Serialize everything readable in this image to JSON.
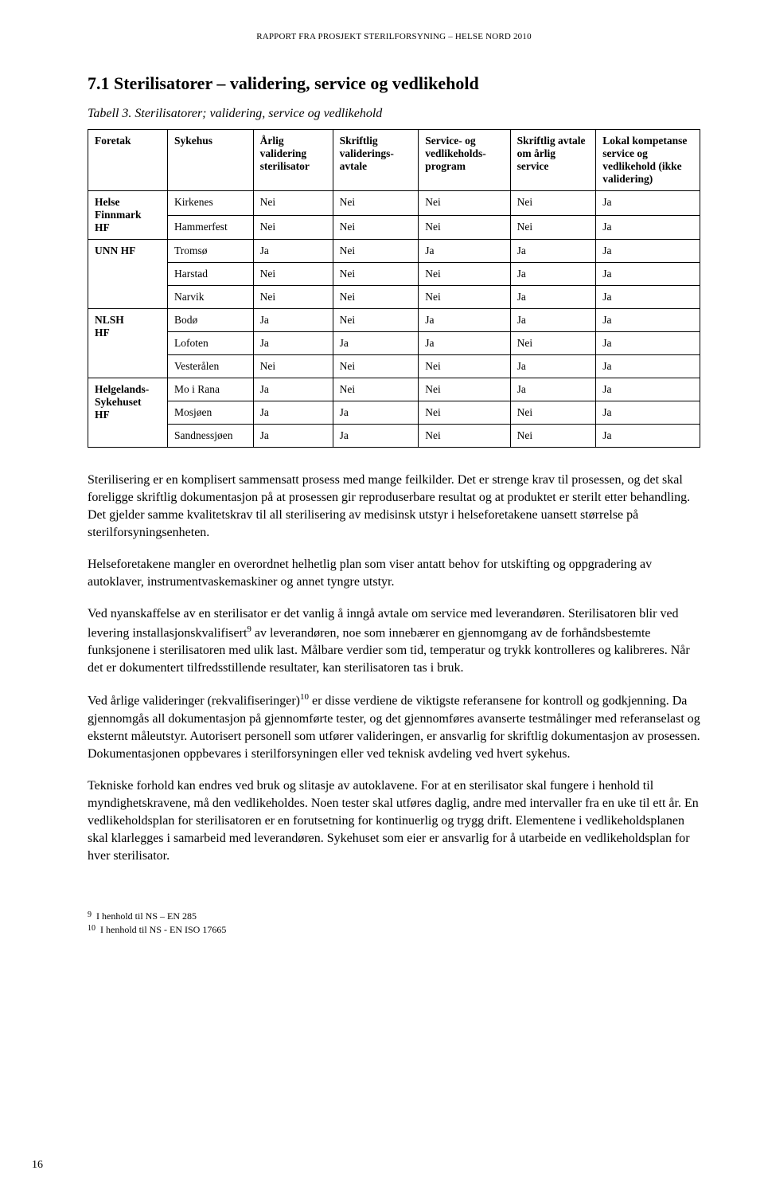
{
  "running_header": "RAPPORT FRA PROSJEKT STERILFORSYNING – HELSE NORD 2010",
  "section_title": "7.1  Sterilisatorer – validering, service og vedlikehold",
  "table_caption": "Tabell 3. Sterilisatorer; validering, service og vedlikehold",
  "table": {
    "columns": [
      "Foretak",
      "Sykehus",
      "Årlig validering sterilisator",
      "Skriftlig validerings-avtale",
      "Service- og vedlikeholds-program",
      "Skriftlig avtale om årlig service",
      "Lokal kompetanse service og vedlikehold (ikke validering)"
    ],
    "groups": [
      {
        "foretak": "Helse\nFinnmark\nHF",
        "rows": [
          {
            "sykehus": "Kirkenes",
            "c3": "Nei",
            "c4": "Nei",
            "c5": "Nei",
            "c6": "Nei",
            "c7": "Ja"
          },
          {
            "sykehus": "Hammerfest",
            "c3": "Nei",
            "c4": "Nei",
            "c5": "Nei",
            "c6": "Nei",
            "c7": "Ja"
          }
        ]
      },
      {
        "foretak": "UNN HF",
        "rows": [
          {
            "sykehus": "Tromsø",
            "c3": "Ja",
            "c4": "Nei",
            "c5": "Ja",
            "c6": "Ja",
            "c7": "Ja"
          },
          {
            "sykehus": "Harstad",
            "c3": "Nei",
            "c4": "Nei",
            "c5": "Nei",
            "c6": "Ja",
            "c7": "Ja"
          },
          {
            "sykehus": "Narvik",
            "c3": "Nei",
            "c4": "Nei",
            "c5": "Nei",
            "c6": "Ja",
            "c7": "Ja"
          }
        ]
      },
      {
        "foretak": "NLSH\nHF",
        "rows": [
          {
            "sykehus": "Bodø",
            "c3": "Ja",
            "c4": "Nei",
            "c5": "Ja",
            "c6": "Ja",
            "c7": "Ja"
          },
          {
            "sykehus": "Lofoten",
            "c3": "Ja",
            "c4": "Ja",
            "c5": "Ja",
            "c6": "Nei",
            "c7": "Ja"
          },
          {
            "sykehus": "Vesterålen",
            "c3": "Nei",
            "c4": "Nei",
            "c5": "Nei",
            "c6": "Ja",
            "c7": "Ja"
          }
        ]
      },
      {
        "foretak": "Helgelands-\nSykehuset\nHF",
        "rows": [
          {
            "sykehus": "Mo i Rana",
            "c3": "Ja",
            "c4": "Nei",
            "c5": "Nei",
            "c6": "Ja",
            "c7": "Ja"
          },
          {
            "sykehus": "Mosjøen",
            "c3": "Ja",
            "c4": "Ja",
            "c5": "Nei",
            "c6": "Nei",
            "c7": "Ja"
          },
          {
            "sykehus": "Sandnessjøen",
            "c3": "Ja",
            "c4": "Ja",
            "c5": "Nei",
            "c6": "Nei",
            "c7": "Ja"
          }
        ]
      }
    ]
  },
  "paragraphs": {
    "p1": "Sterilisering er en komplisert sammensatt prosess med mange feilkilder. Det er strenge krav til prosessen, og det skal foreligge skriftlig dokumentasjon på at prosessen gir reproduserbare resultat og at produktet er sterilt etter behandling. Det gjelder samme kvalitetskrav til all sterilisering av medisinsk utstyr i helseforetakene uansett størrelse på sterilforsyningsenheten.",
    "p2": "Helseforetakene mangler en overordnet helhetlig plan som viser antatt behov for utskifting og oppgradering av autoklaver, instrumentvaskemaskiner og annet tyngre utstyr.",
    "p3a": "Ved nyanskaffelse av en sterilisator er det vanlig å inngå avtale om service med leverandøren. Sterilisatoren blir ved levering installasjonskvalifisert",
    "p3b": " av leverandøren, noe som innebærer en gjennomgang av de forhåndsbestemte funksjonene i sterilisatoren med ulik last. Målbare verdier som tid, temperatur og trykk kontrolleres og kalibreres. Når det er dokumentert tilfredsstillende resultater, kan sterilisatoren tas i bruk.",
    "p4a": "Ved årlige valideringer (rekvalifiseringer)",
    "p4b": " er disse verdiene de viktigste referansene for kontroll og godkjenning. Da gjennomgås all dokumentasjon på gjennomførte tester, og det gjennomføres avanserte testmålinger med referanselast og eksternt måleutstyr. Autorisert personell som utfører valideringen, er ansvarlig for skriftlig dokumentasjon av prosessen. Dokumentasjonen oppbevares i sterilforsyningen eller ved teknisk avdeling ved hvert sykehus.",
    "p5": "Tekniske forhold kan endres ved bruk og slitasje av autoklavene. For at en sterilisator skal fungere i henhold til myndighetskravene, må den vedlikeholdes. Noen tester skal utføres daglig, andre med intervaller fra en uke til ett år. En vedlikeholdsplan for sterilisatoren er en forutsetning for kontinuerlig og trygg drift. Elementene i vedlikeholdsplanen skal klarlegges i samarbeid med leverandøren. Sykehuset som eier er ansvarlig for å utarbeide en vedlikeholdsplan for hver sterilisator."
  },
  "sup": {
    "s9": "9",
    "s10": "10"
  },
  "footnotes": {
    "f9_num": "9",
    "f9_text": "I henhold til NS – EN 285",
    "f10_num": "10",
    "f10_text": "I henhold til NS - EN ISO 17665"
  },
  "page_number": "16",
  "col_widths": [
    "13%",
    "14%",
    "13%",
    "14%",
    "15%",
    "14%",
    "17%"
  ]
}
